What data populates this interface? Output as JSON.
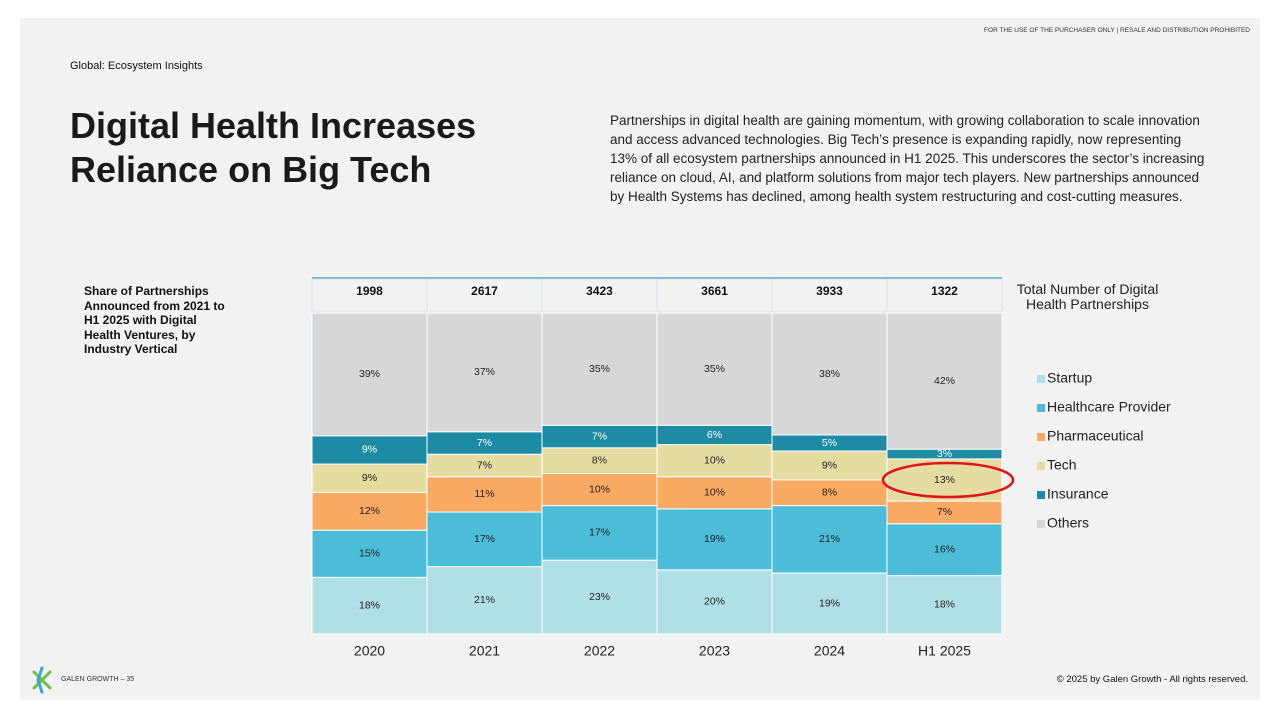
{
  "disclaimer": "FOR THE USE OF THE PURCHASER ONLY | RESALE AND DISTRIBUTION PROHIBITED",
  "kicker": "Global: Ecosystem Insights",
  "title": "Digital Health Increases Reliance on Big Tech",
  "body": "Partnerships in digital health are gaining momentum, with growing collaboration to scale innovation and access advanced technologies. Big Tech’s presence is expanding rapidly, now representing 13% of all ecosystem partnerships announced in H1 2025. This underscores the sector’s increasing reliance on cloud, AI, and platform solutions from major tech players. New partnerships announced by Health Systems has declined, among health system restructuring and cost-cutting measures.",
  "footer_left": "GALEN GROWTH – 35",
  "footer_right": "© 2025 by Galen Growth  - All rights reserved.",
  "chart_data": {
    "type": "stacked_bar_100",
    "title": "Share of Partnerships Announced from 2021 to H1 2025 with Digital Health Ventures, by Industry Vertical",
    "categories": [
      "2020",
      "2021",
      "2022",
      "2023",
      "2024",
      "H1 2025"
    ],
    "totals_label": "Total Number of Digital Health Partnerships",
    "totals": [
      1998,
      2617,
      3423,
      3661,
      3933,
      1322
    ],
    "series": [
      {
        "name": "Startup",
        "color": "#b1dfe7",
        "values": [
          18,
          21,
          23,
          20,
          19,
          18
        ],
        "value_labels": [
          "18%",
          "21%",
          "23%",
          "20%",
          "19%",
          "18%"
        ]
      },
      {
        "name": "Healthcare Provider",
        "color": "#4bbdd8",
        "values": [
          15,
          17,
          17,
          19,
          21,
          16
        ],
        "value_labels": [
          "15%",
          "17%",
          "17%",
          "19%",
          "21%",
          "16%"
        ]
      },
      {
        "name": "Pharmaceutical",
        "color": "#f9a962",
        "values": [
          12,
          11,
          10,
          10,
          8,
          7
        ],
        "value_labels": [
          "12%",
          "11%",
          "10%",
          "10%",
          "8%",
          "7%"
        ]
      },
      {
        "name": "Tech",
        "color": "#e5dca2",
        "values": [
          9,
          7,
          8,
          10,
          9,
          13
        ],
        "value_labels": [
          "9%",
          "7%",
          "8%",
          "10%",
          "9%",
          "13%"
        ]
      },
      {
        "name": "Insurance",
        "color": "#1d8ba4",
        "values": [
          9,
          7,
          7,
          6,
          5,
          3
        ],
        "value_labels": [
          "9%",
          "7%",
          "7%",
          "6%",
          "5%",
          "3%"
        ]
      },
      {
        "name": "Others",
        "color": "#d6d7d9",
        "values": [
          39,
          37,
          35,
          35,
          38,
          42
        ],
        "value_labels": [
          "39%",
          "37%",
          "35%",
          "35%",
          "38%",
          "42%"
        ]
      }
    ]
  }
}
